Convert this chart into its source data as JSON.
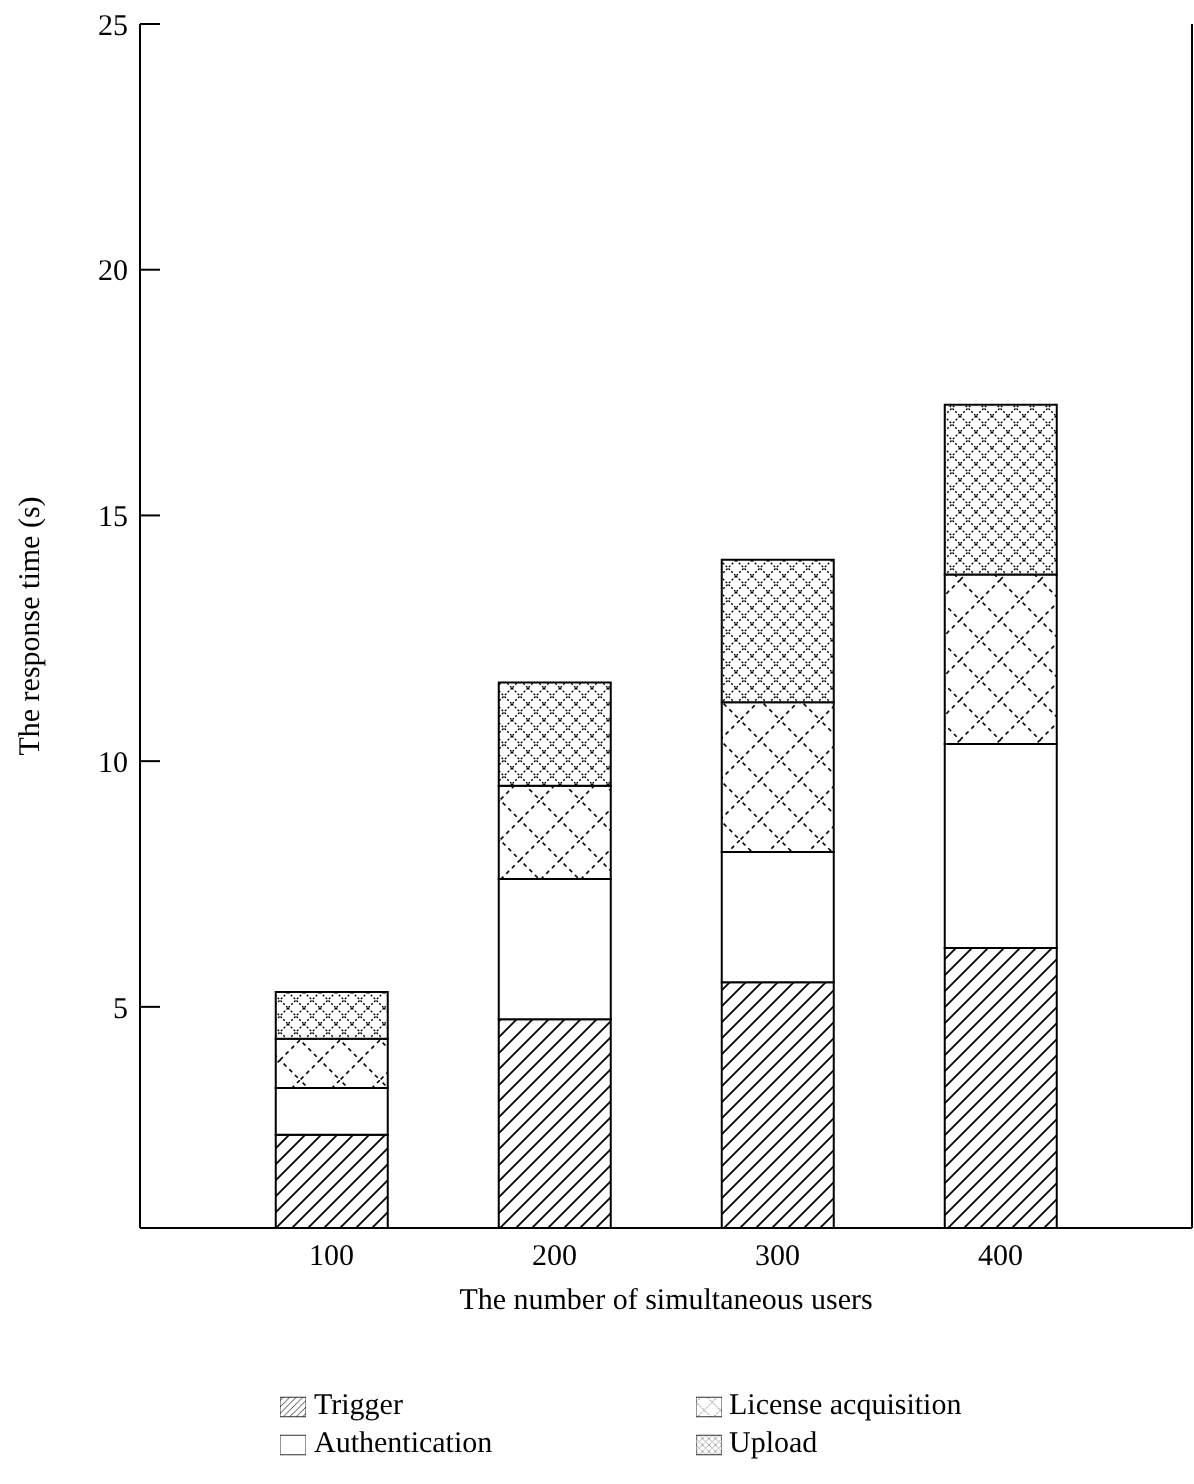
{
  "chart_data": {
    "type": "bar",
    "stacked": true,
    "xlabel": "The number of simultaneous users",
    "ylabel": "The response time (s)",
    "categories": [
      "100",
      "200",
      "300",
      "400"
    ],
    "series": [
      {
        "name": "Trigger",
        "color": "#000000",
        "values": [
          2.4,
          4.75,
          5.5,
          6.2
        ]
      },
      {
        "name": "Authentication",
        "color": "#000000",
        "values": [
          0.95,
          2.85,
          2.65,
          4.15
        ]
      },
      {
        "name": "License acquisition",
        "color": "#000000",
        "values": [
          1.0,
          1.9,
          3.05,
          3.45
        ]
      },
      {
        "name": "Upload",
        "color": "#000000",
        "values": [
          0.95,
          2.1,
          2.9,
          3.45
        ]
      }
    ],
    "ylim": [
      0.5,
      25
    ],
    "yticks": [
      5,
      10,
      15,
      20,
      25
    ],
    "grid": false,
    "legend": "bottom"
  }
}
